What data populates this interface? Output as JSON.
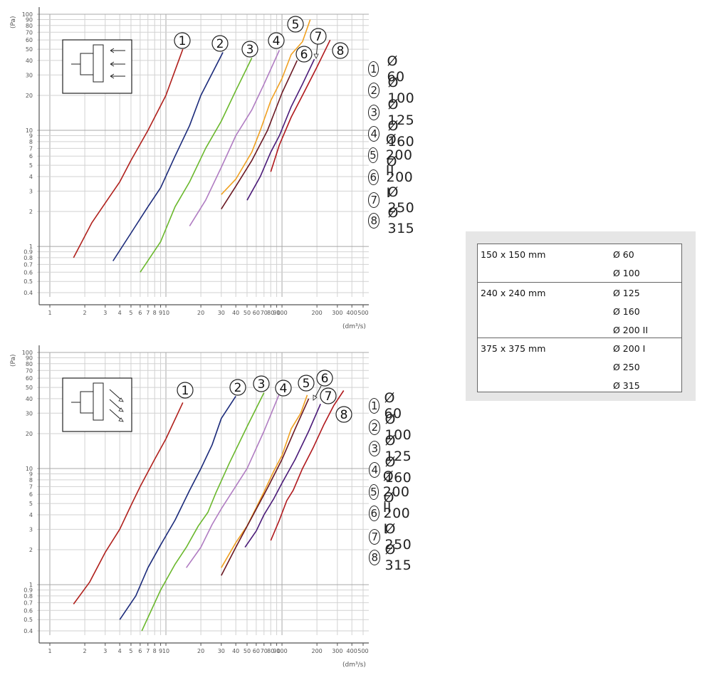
{
  "charts": {
    "top": {
      "y_unit": "(Pa)",
      "x_unit": "(dm³/s)",
      "icon": "side-outlet-arrows-icon",
      "annotations": [
        "1",
        "2",
        "3",
        "4",
        "5",
        "7",
        "6",
        "8"
      ]
    },
    "bottom": {
      "y_unit": "(Pa)",
      "x_unit": "(dm³/s)",
      "icon": "diagonal-outlet-arrows-icon",
      "annotations": [
        "1",
        "2",
        "3",
        "4",
        "5",
        "6",
        "7",
        "8"
      ]
    }
  },
  "x_ticks": [
    "1",
    "2",
    "3",
    "4",
    "5",
    "6",
    "7",
    "8",
    "9",
    "10",
    "20",
    "30",
    "40",
    "50",
    "60",
    "70",
    "80",
    "90",
    "100",
    "200",
    "300",
    "400",
    "500"
  ],
  "y_ticks": [
    "0.4",
    "0.5",
    "0.6",
    "0.7",
    "0.8",
    "0.9",
    "1",
    "2",
    "3",
    "4",
    "5",
    "6",
    "7",
    "8",
    "9",
    "10",
    "20",
    "30",
    "40",
    "50",
    "60",
    "70",
    "80",
    "90",
    "100"
  ],
  "top_legend": [
    {
      "num": "1",
      "label": "Ø 60"
    },
    {
      "num": "2",
      "label": "Ø 100"
    },
    {
      "num": "3",
      "label": "Ø 125"
    },
    {
      "num": "4",
      "label": "Ø 160"
    },
    {
      "num": "5",
      "label": "Ø 200 II"
    },
    {
      "num": "6",
      "label": "Ø 200 I"
    },
    {
      "num": "7",
      "label": "Ø 250"
    },
    {
      "num": "8",
      "label": "Ø 315"
    }
  ],
  "bottom_legend": [
    {
      "num": "1",
      "label": "Ø 60"
    },
    {
      "num": "2",
      "label": "Ø 100"
    },
    {
      "num": "3",
      "label": "Ø 125"
    },
    {
      "num": "4",
      "label": "Ø 160"
    },
    {
      "num": "5",
      "label": "Ø 200 II"
    },
    {
      "num": "6",
      "label": "Ø 200 I"
    },
    {
      "num": "7",
      "label": "Ø 250"
    },
    {
      "num": "8",
      "label": "Ø 315"
    }
  ],
  "size_table": [
    {
      "size": "150 x 150 mm",
      "diameters": [
        "Ø 60",
        "Ø 100"
      ]
    },
    {
      "size": "240 x 240 mm",
      "diameters": [
        "Ø 125",
        "Ø 160",
        "Ø 200 II"
      ]
    },
    {
      "size": "375 x 375 mm",
      "diameters": [
        "Ø 200 I",
        "Ø 250",
        "Ø 315"
      ]
    }
  ],
  "chart_data": [
    {
      "type": "line",
      "xscale": "log",
      "yscale": "log",
      "ylabel": "(Pa)",
      "xlabel": "(dm³/s)",
      "xlim": [
        1,
        500
      ],
      "ylim": [
        0.4,
        100
      ],
      "grid": true,
      "series": [
        {
          "name": "Ø 60",
          "color": "#b0201c",
          "points": [
            [
              1.6,
              0.8
            ],
            [
              2.3,
              1.6
            ],
            [
              3.2,
              2.6
            ],
            [
              4,
              3.6
            ],
            [
              5,
              5.5
            ],
            [
              7,
              10
            ],
            [
              10,
              20
            ],
            [
              14,
              50
            ]
          ]
        },
        {
          "name": "Ø 100",
          "color": "#1b2a7a",
          "points": [
            [
              3.5,
              0.75
            ],
            [
              5,
              1.3
            ],
            [
              7,
              2.2
            ],
            [
              9,
              3.2
            ],
            [
              12,
              6
            ],
            [
              16,
              11
            ],
            [
              20,
              20
            ],
            [
              31,
              47
            ]
          ]
        },
        {
          "name": "Ø 125",
          "color": "#6ab82c",
          "points": [
            [
              6,
              0.6
            ],
            [
              9,
              1.1
            ],
            [
              12,
              2.2
            ],
            [
              16,
              3.6
            ],
            [
              22,
              7
            ],
            [
              30,
              12
            ],
            [
              40,
              22
            ],
            [
              55,
              42
            ]
          ]
        },
        {
          "name": "Ø 160",
          "color": "#b07cc2",
          "points": [
            [
              16,
              1.5
            ],
            [
              22,
              2.5
            ],
            [
              30,
              4.8
            ],
            [
              40,
              9
            ],
            [
              55,
              15
            ],
            [
              70,
              25
            ],
            [
              95,
              49
            ]
          ]
        },
        {
          "name": "Ø 200 II",
          "color": "#f0a020",
          "points": [
            [
              30,
              2.8
            ],
            [
              40,
              3.8
            ],
            [
              55,
              6.5
            ],
            [
              65,
              10
            ],
            [
              80,
              18
            ],
            [
              100,
              28
            ],
            [
              120,
              45
            ],
            [
              150,
              58
            ],
            [
              175,
              90
            ]
          ]
        },
        {
          "name": "Ø 200 I",
          "color": "#6a1822",
          "points": [
            [
              30,
              2.1
            ],
            [
              40,
              3.3
            ],
            [
              55,
              5.5
            ],
            [
              75,
              10
            ],
            [
              100,
              21
            ],
            [
              135,
              40
            ]
          ]
        },
        {
          "name": "Ø 250",
          "color": "#4a1a78",
          "points": [
            [
              50,
              2.5
            ],
            [
              65,
              4
            ],
            [
              80,
              6.5
            ],
            [
              95,
              9
            ],
            [
              120,
              16
            ],
            [
              150,
              25
            ],
            [
              190,
              41
            ]
          ]
        },
        {
          "name": "Ø 315",
          "color": "#b0181c",
          "points": [
            [
              80,
              4.4
            ],
            [
              95,
              7.5
            ],
            [
              120,
              13
            ],
            [
              150,
              20
            ],
            [
              200,
              35
            ],
            [
              260,
              60
            ]
          ]
        }
      ]
    },
    {
      "type": "line",
      "xscale": "log",
      "yscale": "log",
      "ylabel": "(Pa)",
      "xlabel": "(dm³/s)",
      "xlim": [
        1,
        500
      ],
      "ylim": [
        0.4,
        100
      ],
      "grid": true,
      "series": [
        {
          "name": "Ø 60",
          "color": "#b0201c",
          "points": [
            [
              1.6,
              0.68
            ],
            [
              2.2,
              1.05
            ],
            [
              3,
              1.9
            ],
            [
              4,
              3
            ],
            [
              5,
              4.8
            ],
            [
              6,
              7
            ],
            [
              8,
              12
            ],
            [
              10,
              18
            ],
            [
              14,
              37
            ]
          ]
        },
        {
          "name": "Ø 100",
          "color": "#1b2a7a",
          "points": [
            [
              4,
              0.5
            ],
            [
              5.5,
              0.8
            ],
            [
              7,
              1.4
            ],
            [
              9,
              2.2
            ],
            [
              12,
              3.6
            ],
            [
              16,
              6.5
            ],
            [
              20,
              10
            ],
            [
              25,
              16
            ],
            [
              30,
              27
            ],
            [
              40,
              42
            ]
          ]
        },
        {
          "name": "Ø 125",
          "color": "#6ab82c",
          "points": [
            [
              6.2,
              0.4
            ],
            [
              9,
              0.9
            ],
            [
              12,
              1.5
            ],
            [
              15,
              2.1
            ],
            [
              19,
              3.2
            ],
            [
              23,
              4.2
            ],
            [
              27,
              6.2
            ],
            [
              35,
              11
            ],
            [
              50,
              23
            ],
            [
              70,
              45
            ]
          ]
        },
        {
          "name": "Ø 160",
          "color": "#b07cc2",
          "points": [
            [
              15,
              1.4
            ],
            [
              20,
              2.1
            ],
            [
              25,
              3.3
            ],
            [
              30,
              4.5
            ],
            [
              38,
              6.5
            ],
            [
              50,
              10
            ],
            [
              70,
              21
            ],
            [
              95,
              44
            ]
          ]
        },
        {
          "name": "Ø 200 II",
          "color": "#f0a020",
          "points": [
            [
              30,
              1.4
            ],
            [
              40,
              2.3
            ],
            [
              50,
              3.2
            ],
            [
              60,
              4.6
            ],
            [
              70,
              6.3
            ],
            [
              85,
              9.5
            ],
            [
              100,
              13
            ],
            [
              120,
              22
            ],
            [
              145,
              30
            ],
            [
              165,
              43
            ]
          ]
        },
        {
          "name": "Ø 200 I",
          "color": "#6a1822",
          "points": [
            [
              30,
              1.2
            ],
            [
              40,
              2.1
            ],
            [
              55,
              3.8
            ],
            [
              75,
              6.8
            ],
            [
              100,
              12
            ],
            [
              130,
              22
            ],
            [
              170,
              40
            ]
          ]
        },
        {
          "name": "Ø 250",
          "color": "#4a1a78",
          "points": [
            [
              48,
              2.1
            ],
            [
              60,
              2.9
            ],
            [
              70,
              4
            ],
            [
              85,
              5.5
            ],
            [
              100,
              7.5
            ],
            [
              130,
              12
            ],
            [
              170,
              21
            ],
            [
              215,
              36
            ]
          ]
        },
        {
          "name": "Ø 315",
          "color": "#b0181c",
          "points": [
            [
              80,
              2.4
            ],
            [
              95,
              3.6
            ],
            [
              110,
              5.3
            ],
            [
              125,
              6.5
            ],
            [
              150,
              10
            ],
            [
              185,
              15
            ],
            [
              230,
              24
            ],
            [
              280,
              35
            ],
            [
              340,
              47
            ]
          ]
        }
      ]
    }
  ]
}
